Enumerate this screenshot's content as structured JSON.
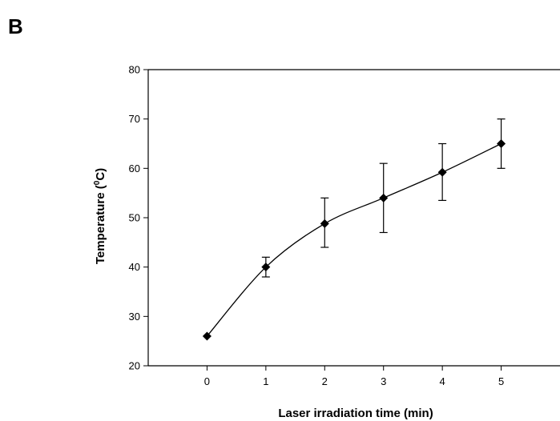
{
  "panel_label": "B",
  "chart_data": {
    "type": "line",
    "title": "",
    "xlabel": "Laser irradiation time (min)",
    "ylabel_main": "Temperature (",
    "ylabel_sup": "0",
    "ylabel_tail": "C)",
    "xlim": [
      -1,
      6
    ],
    "ylim": [
      20,
      80
    ],
    "x": [
      0,
      1,
      2,
      3,
      4,
      5
    ],
    "x_tick_labels": [
      "0",
      "1",
      "2",
      "3",
      "4",
      "5"
    ],
    "y_ticks": [
      20,
      30,
      40,
      50,
      60,
      70,
      80
    ],
    "y_tick_labels": [
      "20",
      "30",
      "40",
      "50",
      "60",
      "70",
      "80"
    ],
    "series": [
      {
        "values": [
          26,
          40,
          48.8,
          54,
          59.2,
          65
        ],
        "error_low": [
          26,
          38,
          44,
          47,
          53.5,
          60
        ],
        "error_high": [
          26,
          42,
          54,
          61,
          65,
          70
        ],
        "color": "#000000",
        "marker": "diamond"
      }
    ],
    "grid": false
  }
}
